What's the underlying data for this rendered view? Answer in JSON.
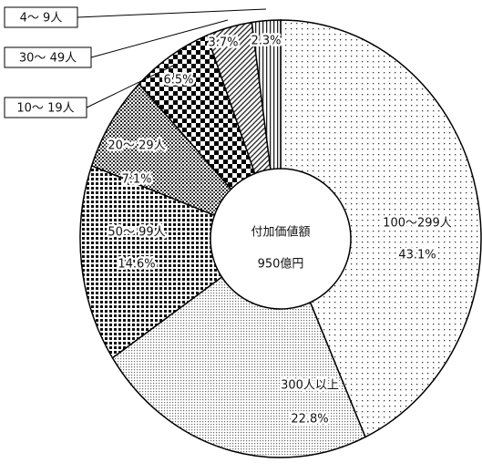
{
  "chart_data": {
    "type": "pie",
    "center_title": "付加価値額",
    "center_subtitle": "950億円",
    "categories": [
      "100～299人",
      "300人以上",
      "50～ 99人",
      "20～ 29人",
      "10～ 19人",
      "30～ 49人",
      "4～ 9人"
    ],
    "values": [
      43.1,
      22.8,
      14.6,
      7.1,
      6.5,
      3.7,
      2.3
    ],
    "value_labels": [
      "43.1%",
      "22.8%",
      "14.6%",
      "7.1%",
      "6.5%",
      "3.7%",
      "2.3%"
    ]
  }
}
